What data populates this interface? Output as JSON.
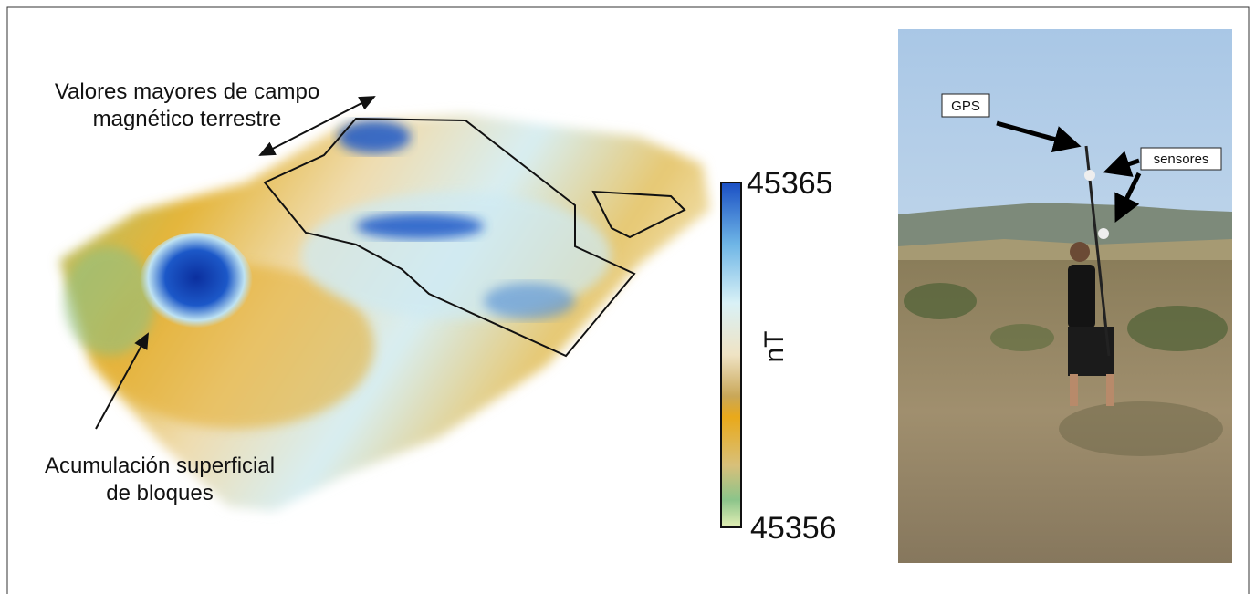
{
  "map": {
    "annotations": [
      {
        "lines": [
          "Valores mayores de campo",
          "magnético terrestre"
        ]
      },
      {
        "lines": [
          "Acumulación superficial",
          "de bloques"
        ]
      }
    ],
    "colorbar": {
      "max": "45365",
      "min": "45356",
      "unit": "nT"
    }
  },
  "photo": {
    "labels": [
      "GPS",
      "sensores"
    ]
  }
}
